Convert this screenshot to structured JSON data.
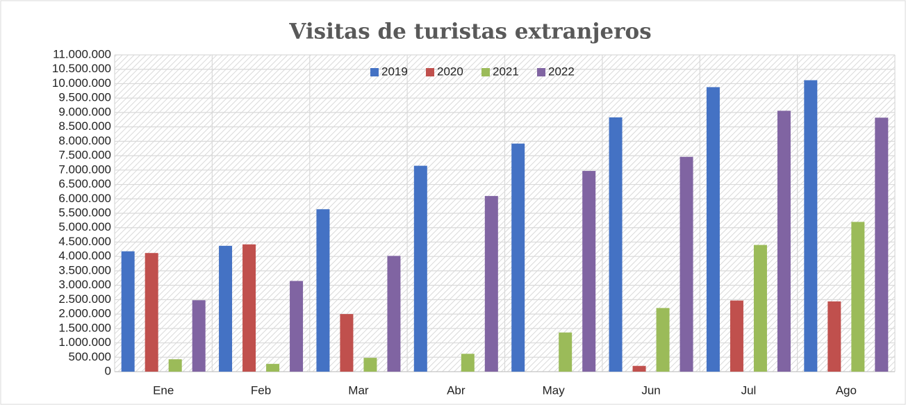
{
  "chart_data": {
    "type": "bar",
    "title": "Visitas de turistas extranjeros",
    "categories": [
      "Ene",
      "Feb",
      "Mar",
      "Abr",
      "May",
      "Jun",
      "Jul",
      "Ago"
    ],
    "series": [
      {
        "name": "2019",
        "color": "#4472c4",
        "values": [
          4180000,
          4370000,
          5640000,
          7150000,
          7920000,
          8830000,
          9880000,
          10120000
        ]
      },
      {
        "name": "2020",
        "color": "#c0504d",
        "values": [
          4120000,
          4420000,
          2000000,
          0,
          0,
          200000,
          2470000,
          2440000
        ]
      },
      {
        "name": "2021",
        "color": "#9bbb59",
        "values": [
          430000,
          270000,
          480000,
          620000,
          1360000,
          2210000,
          4400000,
          5200000
        ]
      },
      {
        "name": "2022",
        "color": "#8064a2",
        "values": [
          2480000,
          3150000,
          4020000,
          6100000,
          6970000,
          7460000,
          9060000,
          8820000
        ]
      }
    ],
    "ylim": [
      0,
      11000000
    ],
    "yticks": [
      0,
      {
        "value": 500000,
        "label": "500.000"
      },
      {
        "value": 1000000,
        "label": "1.000.000"
      },
      {
        "value": 1500000,
        "label": "1.500.000"
      },
      {
        "value": 2000000,
        "label": "2.000.000"
      },
      {
        "value": 2500000,
        "label": "2.500.000"
      },
      {
        "value": 3000000,
        "label": "3.000.000"
      },
      {
        "value": 3500000,
        "label": "3.500.000"
      },
      {
        "value": 4000000,
        "label": "4.000.000"
      },
      {
        "value": 4500000,
        "label": "4.500.000"
      },
      {
        "value": 5000000,
        "label": "5.000.000"
      },
      {
        "value": 5500000,
        "label": "5.500.000"
      },
      {
        "value": 6000000,
        "label": "6.000.000"
      },
      {
        "value": 6500000,
        "label": "6.500.000"
      },
      {
        "value": 7000000,
        "label": "7.000.000"
      },
      {
        "value": 7500000,
        "label": "7.500.000"
      },
      {
        "value": 8000000,
        "label": "8.000.000"
      },
      {
        "value": 8500000,
        "label": "8.500.000"
      },
      {
        "value": 9000000,
        "label": "9.000.000"
      },
      {
        "value": 9500000,
        "label": "9.500.000"
      },
      {
        "value": 10000000,
        "label": "10.000.000"
      },
      {
        "value": 10500000,
        "label": "10.500.000"
      },
      {
        "value": 11000000,
        "label": "11.000.000"
      }
    ],
    "grid": true,
    "legend": "top"
  }
}
